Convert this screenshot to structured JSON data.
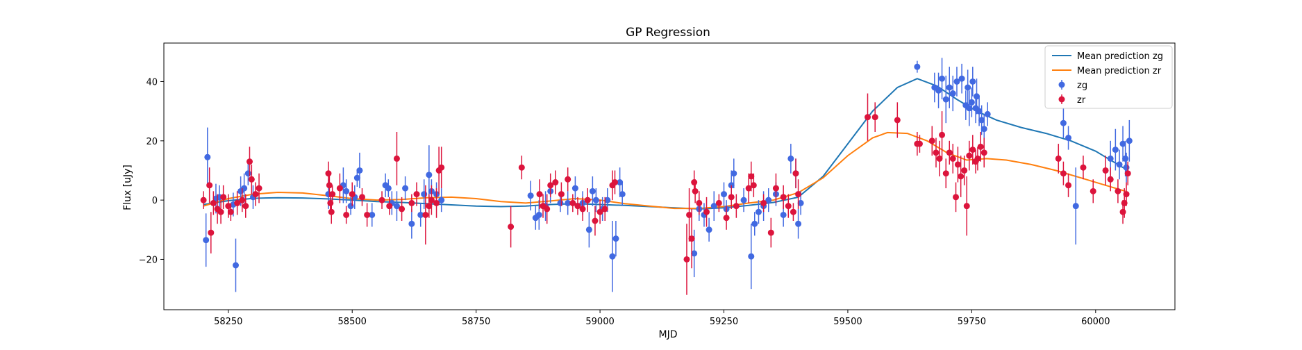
{
  "chart_data": {
    "type": "scatter",
    "title": "GP Regression",
    "xlabel": "MJD",
    "ylabel": "Flux [uJy]",
    "xlim": [
      58120,
      60160
    ],
    "ylim": [
      -37,
      53
    ],
    "xticks": [
      58250,
      58500,
      58750,
      59000,
      59250,
      59500,
      59750,
      60000
    ],
    "yticks": [
      -20,
      0,
      20,
      40
    ],
    "legend_position": "top-right",
    "grid": false,
    "series": [
      {
        "name": "Mean prediction zg",
        "kind": "line",
        "color": "#1f77b4",
        "x": [
          58200,
          58250,
          58300,
          58350,
          58400,
          58450,
          58500,
          58550,
          58600,
          58650,
          58700,
          58750,
          58800,
          58850,
          58900,
          58950,
          59000,
          59050,
          59100,
          59150,
          59200,
          59250,
          59300,
          59350,
          59400,
          59450,
          59500,
          59550,
          59600,
          59640,
          59680,
          59720,
          59760,
          59800,
          59850,
          59900,
          59950,
          60000,
          60060
        ],
        "y": [
          -1.5,
          -0.2,
          0.6,
          0.8,
          0.7,
          0.4,
          0.0,
          -0.5,
          -0.8,
          -1.2,
          -1.6,
          -2.0,
          -2.2,
          -2.0,
          -1.5,
          -1.2,
          -1.5,
          -1.8,
          -2.2,
          -2.6,
          -3.0,
          -2.6,
          -1.8,
          -0.8,
          1.0,
          8.0,
          19.0,
          30.0,
          38.0,
          41.0,
          38.5,
          34.0,
          30.0,
          27.0,
          24.5,
          22.5,
          20.0,
          16.5,
          10.5
        ]
      },
      {
        "name": "Mean prediction zr",
        "kind": "line",
        "color": "#ff7f0e",
        "x": [
          58200,
          58250,
          58300,
          58350,
          58400,
          58450,
          58500,
          58550,
          58600,
          58650,
          58700,
          58750,
          58800,
          58850,
          58900,
          58950,
          59000,
          59050,
          59100,
          59150,
          59200,
          59250,
          59300,
          59350,
          59400,
          59450,
          59500,
          59550,
          59580,
          59620,
          59660,
          59700,
          59740,
          59780,
          59820,
          59870,
          59920,
          59970,
          60020,
          60060
        ],
        "y": [
          -2.0,
          0.5,
          2.0,
          2.6,
          2.4,
          1.5,
          0.5,
          0.0,
          0.2,
          0.8,
          1.0,
          0.5,
          -0.5,
          -1.0,
          -0.3,
          0.5,
          0.0,
          -1.2,
          -2.0,
          -2.8,
          -2.8,
          -2.2,
          -1.0,
          0.0,
          2.5,
          7.5,
          15.0,
          21.0,
          22.8,
          22.5,
          20.0,
          16.0,
          13.5,
          14.0,
          13.5,
          12.0,
          10.0,
          7.5,
          5.0,
          3.0
        ]
      },
      {
        "name": "zg",
        "kind": "errorbar",
        "color": "#4169e1",
        "points": [
          [
            58205,
            -13.5,
            9
          ],
          [
            58208,
            14.5,
            10
          ],
          [
            58225,
            0.5,
            5
          ],
          [
            58232,
            1.0,
            4
          ],
          [
            58260,
            -1.5,
            4
          ],
          [
            58265,
            -22,
            9
          ],
          [
            58275,
            3,
            5
          ],
          [
            58282,
            4,
            5
          ],
          [
            58290,
            9,
            4
          ],
          [
            58300,
            1,
            4
          ],
          [
            58452,
            2,
            5
          ],
          [
            58482,
            5,
            6
          ],
          [
            58488,
            3,
            4
          ],
          [
            58497,
            -2,
            3
          ],
          [
            58505,
            1,
            4
          ],
          [
            58510,
            7.5,
            3
          ],
          [
            58515,
            10,
            6
          ],
          [
            58540,
            -5,
            4
          ],
          [
            58567,
            5,
            4
          ],
          [
            58573,
            4,
            3
          ],
          [
            58580,
            -1,
            4
          ],
          [
            58590,
            -2,
            5
          ],
          [
            58607,
            4,
            4
          ],
          [
            58620,
            -8,
            5
          ],
          [
            58638,
            -5,
            4
          ],
          [
            58645,
            2,
            5
          ],
          [
            58655,
            8.5,
            10
          ],
          [
            58660,
            3,
            4
          ],
          [
            58670,
            2,
            4
          ],
          [
            58680,
            0,
            4
          ],
          [
            58860,
            1.5,
            5
          ],
          [
            58870,
            -6,
            4
          ],
          [
            58877,
            -5,
            5
          ],
          [
            58890,
            -2,
            5
          ],
          [
            58900,
            3,
            4
          ],
          [
            58920,
            -1,
            3
          ],
          [
            58935,
            -1,
            4
          ],
          [
            58950,
            4,
            4
          ],
          [
            58965,
            -1,
            4
          ],
          [
            58978,
            -10,
            6
          ],
          [
            58985,
            3,
            5
          ],
          [
            58992,
            0,
            4
          ],
          [
            59005,
            -3,
            4
          ],
          [
            59015,
            0,
            4
          ],
          [
            59025,
            -19,
            12
          ],
          [
            59032,
            -13,
            6
          ],
          [
            59040,
            6,
            5
          ],
          [
            59045,
            2,
            4
          ],
          [
            59190,
            -18,
            8
          ],
          [
            59200,
            -3,
            4
          ],
          [
            59210,
            -5,
            4
          ],
          [
            59220,
            -10,
            4
          ],
          [
            59230,
            -2,
            5
          ],
          [
            59250,
            2,
            4
          ],
          [
            59255,
            -3,
            3
          ],
          [
            59265,
            5,
            5
          ],
          [
            59270,
            9,
            5
          ],
          [
            59290,
            0,
            4
          ],
          [
            59305,
            -19,
            11
          ],
          [
            59312,
            -8,
            4
          ],
          [
            59320,
            -4,
            4
          ],
          [
            59330,
            -2,
            5
          ],
          [
            59340,
            0,
            4
          ],
          [
            59355,
            2,
            4
          ],
          [
            59370,
            -5,
            4
          ],
          [
            59385,
            14,
            5
          ],
          [
            59395,
            9,
            5
          ],
          [
            59400,
            -8,
            5
          ],
          [
            59405,
            -1,
            4
          ],
          [
            59640,
            45,
            2
          ],
          [
            59675,
            38,
            5
          ],
          [
            59683,
            37,
            6
          ],
          [
            59690,
            41,
            7
          ],
          [
            59698,
            34,
            8
          ],
          [
            59705,
            38,
            7
          ],
          [
            59712,
            36,
            6
          ],
          [
            59720,
            40,
            5
          ],
          [
            59730,
            41,
            5
          ],
          [
            59738,
            32,
            5
          ],
          [
            59742,
            38,
            6
          ],
          [
            59750,
            33,
            5
          ],
          [
            59758,
            31,
            5
          ],
          [
            59765,
            30,
            5
          ],
          [
            59770,
            27,
            5
          ],
          [
            59775,
            24,
            5
          ],
          [
            59782,
            29,
            4
          ],
          [
            59752,
            40,
            5
          ],
          [
            59760,
            35,
            6
          ],
          [
            59745,
            31,
            6
          ],
          [
            59935,
            26,
            5
          ],
          [
            59945,
            21,
            4
          ],
          [
            59960,
            -2,
            13
          ],
          [
            60030,
            14,
            6
          ],
          [
            60040,
            17,
            7
          ],
          [
            60048,
            12,
            5
          ],
          [
            60055,
            19,
            6
          ],
          [
            60060,
            14,
            6
          ],
          [
            60062,
            11,
            5
          ],
          [
            60068,
            20,
            7
          ]
        ]
      },
      {
        "name": "zr",
        "kind": "errorbar",
        "color": "#dc143c",
        "points": [
          [
            58200,
            0,
            3
          ],
          [
            58212,
            5,
            6
          ],
          [
            58215,
            -11,
            7
          ],
          [
            58220,
            -1,
            4
          ],
          [
            58228,
            -3,
            5
          ],
          [
            58235,
            -4,
            4
          ],
          [
            58240,
            1,
            4
          ],
          [
            58250,
            -2,
            4
          ],
          [
            58255,
            -4,
            3
          ],
          [
            58268,
            -1,
            4
          ],
          [
            58278,
            0,
            4
          ],
          [
            58285,
            -2,
            4
          ],
          [
            58293,
            13,
            5
          ],
          [
            58297,
            7,
            5
          ],
          [
            58305,
            2,
            4
          ],
          [
            58312,
            4,
            5
          ],
          [
            58452,
            9,
            4
          ],
          [
            58454,
            5,
            4
          ],
          [
            58456,
            -1,
            3
          ],
          [
            58458,
            -4,
            4
          ],
          [
            58460,
            2,
            3
          ],
          [
            58475,
            4,
            5
          ],
          [
            58488,
            -5,
            3
          ],
          [
            58500,
            2,
            4
          ],
          [
            58520,
            1,
            3
          ],
          [
            58530,
            -5,
            4
          ],
          [
            58560,
            0,
            3
          ],
          [
            58575,
            -2,
            3
          ],
          [
            58590,
            14,
            9
          ],
          [
            58600,
            -3,
            4
          ],
          [
            58620,
            -1,
            3
          ],
          [
            58630,
            2,
            4
          ],
          [
            58648,
            -5,
            10
          ],
          [
            58655,
            -2,
            4
          ],
          [
            58660,
            0,
            5
          ],
          [
            58670,
            -1,
            5
          ],
          [
            58675,
            10,
            8
          ],
          [
            58680,
            11,
            7
          ],
          [
            58820,
            -9,
            7
          ],
          [
            58842,
            11,
            4
          ],
          [
            58878,
            2,
            5
          ],
          [
            58885,
            -2,
            4
          ],
          [
            58893,
            -3,
            5
          ],
          [
            58900,
            5,
            4
          ],
          [
            58910,
            6,
            4
          ],
          [
            58922,
            2,
            4
          ],
          [
            58935,
            7,
            4
          ],
          [
            58945,
            -1,
            3
          ],
          [
            58955,
            -2,
            3
          ],
          [
            58965,
            -3,
            4
          ],
          [
            58975,
            0,
            4
          ],
          [
            58990,
            -7,
            5
          ],
          [
            59000,
            -4,
            4
          ],
          [
            59010,
            -3,
            4
          ],
          [
            59025,
            5,
            5
          ],
          [
            59030,
            6,
            4
          ],
          [
            59175,
            -20,
            12
          ],
          [
            59180,
            -5,
            9
          ],
          [
            59185,
            -13,
            10
          ],
          [
            59190,
            6,
            4
          ],
          [
            59192,
            3,
            4
          ],
          [
            59200,
            -1,
            4
          ],
          [
            59215,
            -4,
            5
          ],
          [
            59240,
            -1,
            3
          ],
          [
            59255,
            -6,
            4
          ],
          [
            59265,
            1,
            4
          ],
          [
            59275,
            -2,
            4
          ],
          [
            59300,
            4,
            5
          ],
          [
            59305,
            8,
            5
          ],
          [
            59310,
            5,
            4
          ],
          [
            59330,
            -1,
            3
          ],
          [
            59345,
            -11,
            5
          ],
          [
            59355,
            4,
            5
          ],
          [
            59370,
            1,
            4
          ],
          [
            59380,
            -2,
            4
          ],
          [
            59390,
            -4,
            3
          ],
          [
            59395,
            9,
            5
          ],
          [
            59400,
            2,
            5
          ],
          [
            59540,
            28,
            8
          ],
          [
            59555,
            28,
            5
          ],
          [
            59600,
            27,
            6
          ],
          [
            59640,
            19,
            4
          ],
          [
            59645,
            19,
            3
          ],
          [
            59670,
            20,
            5
          ],
          [
            59678,
            16,
            5
          ],
          [
            59685,
            14,
            6
          ],
          [
            59690,
            22,
            8
          ],
          [
            59698,
            9,
            5
          ],
          [
            59705,
            16,
            4
          ],
          [
            59712,
            14,
            5
          ],
          [
            59718,
            1,
            5
          ],
          [
            59722,
            12,
            6
          ],
          [
            59728,
            8,
            7
          ],
          [
            59735,
            10,
            5
          ],
          [
            59740,
            -2,
            10
          ],
          [
            59745,
            15,
            5
          ],
          [
            59752,
            17,
            5
          ],
          [
            59758,
            13,
            4
          ],
          [
            59762,
            14,
            4
          ],
          [
            59768,
            18,
            5
          ],
          [
            59775,
            16,
            5
          ],
          [
            59925,
            14,
            5
          ],
          [
            59935,
            9,
            4
          ],
          [
            59945,
            5,
            4
          ],
          [
            59975,
            11,
            4
          ],
          [
            59995,
            3,
            4
          ],
          [
            60020,
            10,
            5
          ],
          [
            60030,
            7,
            4
          ],
          [
            60045,
            3,
            4
          ],
          [
            60055,
            -4,
            4
          ],
          [
            60058,
            -1,
            5
          ],
          [
            60062,
            2,
            4
          ],
          [
            60065,
            9,
            4
          ]
        ]
      }
    ]
  }
}
